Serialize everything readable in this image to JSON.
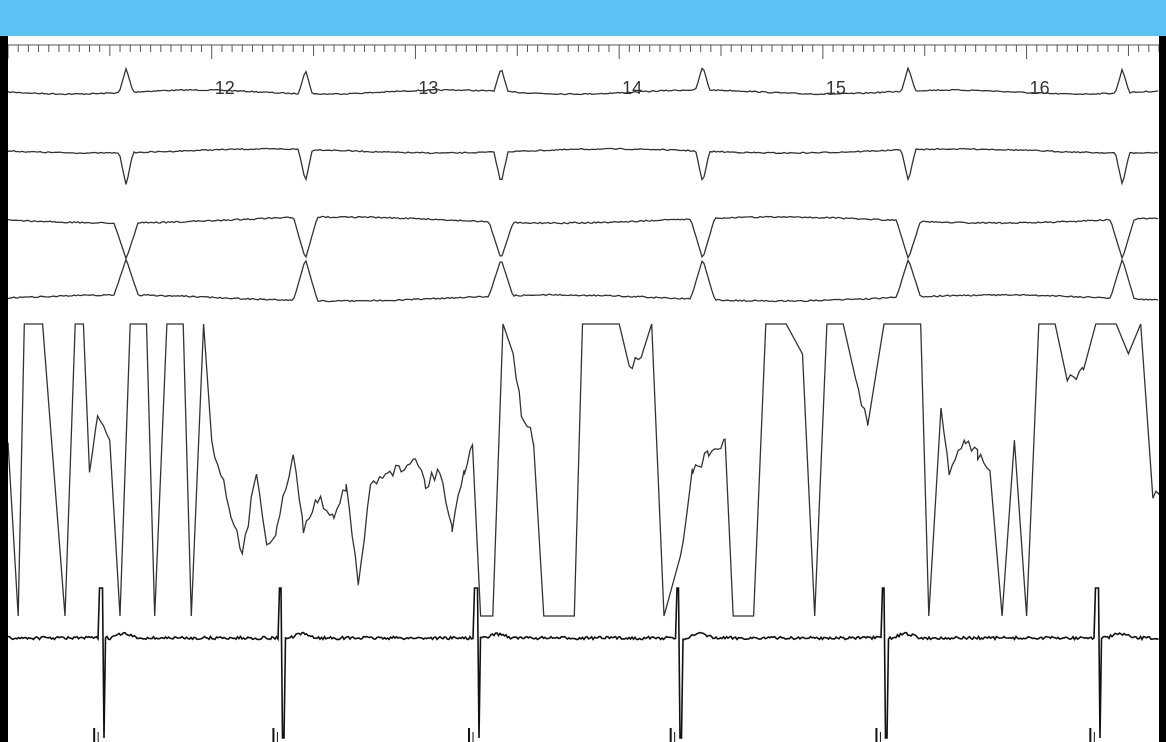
{
  "colors": {
    "top_bar": "#5bc2f3",
    "frame": "#000000",
    "trace_gray": "#333333",
    "trace_black": "#111111",
    "background": "#ffffff"
  },
  "chart_data": {
    "type": "line",
    "title": "",
    "xlabel": "",
    "ylabel": "",
    "xlim": [
      11.0,
      16.65
    ],
    "grid": false,
    "legend": "none",
    "ticks": {
      "major": [
        11,
        12,
        13,
        14,
        15,
        16
      ],
      "minor_step": 0.05
    },
    "tick_labels": [
      "12",
      "13",
      "14",
      "15",
      "16"
    ],
    "beats": [
      11.58,
      12.46,
      13.42,
      14.41,
      15.42,
      16.47
    ],
    "series": [
      {
        "values": {
          "baseline": 0,
          "spike": 25,
          "direction": "up"
        }
      },
      {
        "values": {
          "baseline": 0,
          "spike": -30,
          "direction": "down"
        }
      },
      {
        "values": {
          "upper": 1,
          "lower": -1,
          "crossing": "at-beat"
        }
      },
      {
        "values": {
          "range": [
            0,
            1
          ],
          "saturation": "clipped",
          "segments": [
            [
              11.0,
              0.6
            ],
            [
              11.05,
              0.0
            ],
            [
              11.08,
              1.0
            ],
            [
              11.17,
              1.0
            ],
            [
              11.28,
              0.0
            ],
            [
              11.33,
              1.0
            ],
            [
              11.37,
              1.0
            ],
            [
              11.4,
              0.5
            ],
            [
              11.44,
              0.7
            ],
            [
              11.5,
              0.6
            ],
            [
              11.55,
              0.0
            ],
            [
              11.6,
              1.0
            ],
            [
              11.68,
              1.0
            ],
            [
              11.72,
              0.0
            ],
            [
              11.78,
              1.0
            ],
            [
              11.86,
              1.0
            ],
            [
              11.9,
              0.0
            ],
            [
              11.96,
              1.0
            ],
            [
              12.0,
              0.6
            ],
            [
              12.08,
              0.4
            ],
            [
              12.15,
              0.2
            ],
            [
              12.22,
              0.5
            ],
            [
              12.27,
              0.25
            ],
            [
              12.32,
              0.3
            ],
            [
              12.4,
              0.55
            ],
            [
              12.45,
              0.3
            ],
            [
              12.52,
              0.4
            ],
            [
              12.6,
              0.35
            ],
            [
              12.66,
              0.45
            ],
            [
              12.72,
              0.1
            ],
            [
              12.78,
              0.45
            ],
            [
              12.86,
              0.5
            ],
            [
              12.93,
              0.5
            ],
            [
              13.0,
              0.55
            ],
            [
              13.05,
              0.45
            ],
            [
              13.12,
              0.5
            ],
            [
              13.18,
              0.3
            ],
            [
              13.24,
              0.5
            ],
            [
              13.28,
              0.6
            ],
            [
              13.32,
              0.0
            ],
            [
              13.38,
              0.0
            ],
            [
              13.43,
              1.0
            ],
            [
              13.48,
              0.9
            ],
            [
              13.52,
              0.7
            ],
            [
              13.58,
              0.6
            ],
            [
              13.63,
              0.0
            ],
            [
              13.78,
              0.0
            ],
            [
              13.82,
              1.0
            ],
            [
              14.0,
              1.0
            ],
            [
              14.05,
              0.85
            ],
            [
              14.12,
              0.9
            ],
            [
              14.16,
              1.0
            ],
            [
              14.22,
              0.0
            ],
            [
              14.3,
              0.2
            ],
            [
              14.36,
              0.5
            ],
            [
              14.44,
              0.55
            ],
            [
              14.52,
              0.6
            ],
            [
              14.56,
              0.0
            ],
            [
              14.66,
              0.0
            ],
            [
              14.72,
              1.0
            ],
            [
              14.82,
              1.0
            ],
            [
              14.9,
              0.9
            ],
            [
              14.96,
              0.0
            ],
            [
              15.02,
              1.0
            ],
            [
              15.1,
              1.0
            ],
            [
              15.16,
              0.8
            ],
            [
              15.22,
              0.65
            ],
            [
              15.3,
              1.0
            ],
            [
              15.48,
              1.0
            ],
            [
              15.52,
              0.0
            ],
            [
              15.58,
              0.7
            ],
            [
              15.62,
              0.5
            ],
            [
              15.7,
              0.6
            ],
            [
              15.76,
              0.55
            ],
            [
              15.82,
              0.5
            ],
            [
              15.88,
              0.0
            ],
            [
              15.94,
              0.6
            ],
            [
              16.0,
              0.0
            ],
            [
              16.06,
              1.0
            ],
            [
              16.14,
              1.0
            ],
            [
              16.2,
              0.8
            ],
            [
              16.28,
              0.85
            ],
            [
              16.34,
              1.0
            ],
            [
              16.44,
              1.0
            ],
            [
              16.5,
              0.9
            ],
            [
              16.56,
              1.0
            ],
            [
              16.62,
              0.4
            ],
            [
              16.65,
              0.42
            ]
          ]
        }
      },
      {
        "values": {
          "baseline": 0,
          "spike": 40,
          "direction": "biphasic"
        }
      }
    ]
  }
}
